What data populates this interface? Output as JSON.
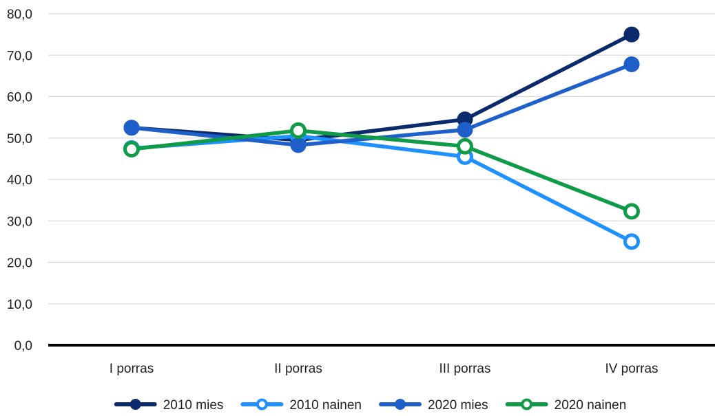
{
  "chart_data": {
    "type": "line",
    "title": "",
    "xlabel": "",
    "ylabel": "",
    "categories": [
      "I porras",
      "II porras",
      "III porras",
      "IV porras"
    ],
    "ylim": [
      0,
      80
    ],
    "yticks": [
      0,
      10,
      20,
      30,
      40,
      50,
      60,
      70,
      80
    ],
    "ytick_labels": [
      "0,0",
      "10,0",
      "20,0",
      "30,0",
      "40,0",
      "50,0",
      "60,0",
      "70,0",
      "80,0"
    ],
    "grid": true,
    "legend_position": "bottom",
    "series": [
      {
        "name": "2010 mies",
        "values": [
          52.5,
          49.5,
          54.5,
          75.0
        ],
        "color": "#0b2a6b",
        "marker": "filled"
      },
      {
        "name": "2010 nainen",
        "values": [
          47.5,
          50.5,
          45.5,
          25.0
        ],
        "color": "#1e90ff",
        "marker": "hollow"
      },
      {
        "name": "2020 mies",
        "values": [
          52.5,
          48.3,
          52.0,
          67.8
        ],
        "color": "#1f5fc9",
        "marker": "filled"
      },
      {
        "name": "2020 nainen",
        "values": [
          47.3,
          51.8,
          48.0,
          32.3
        ],
        "color": "#109b48",
        "marker": "hollow"
      }
    ]
  }
}
